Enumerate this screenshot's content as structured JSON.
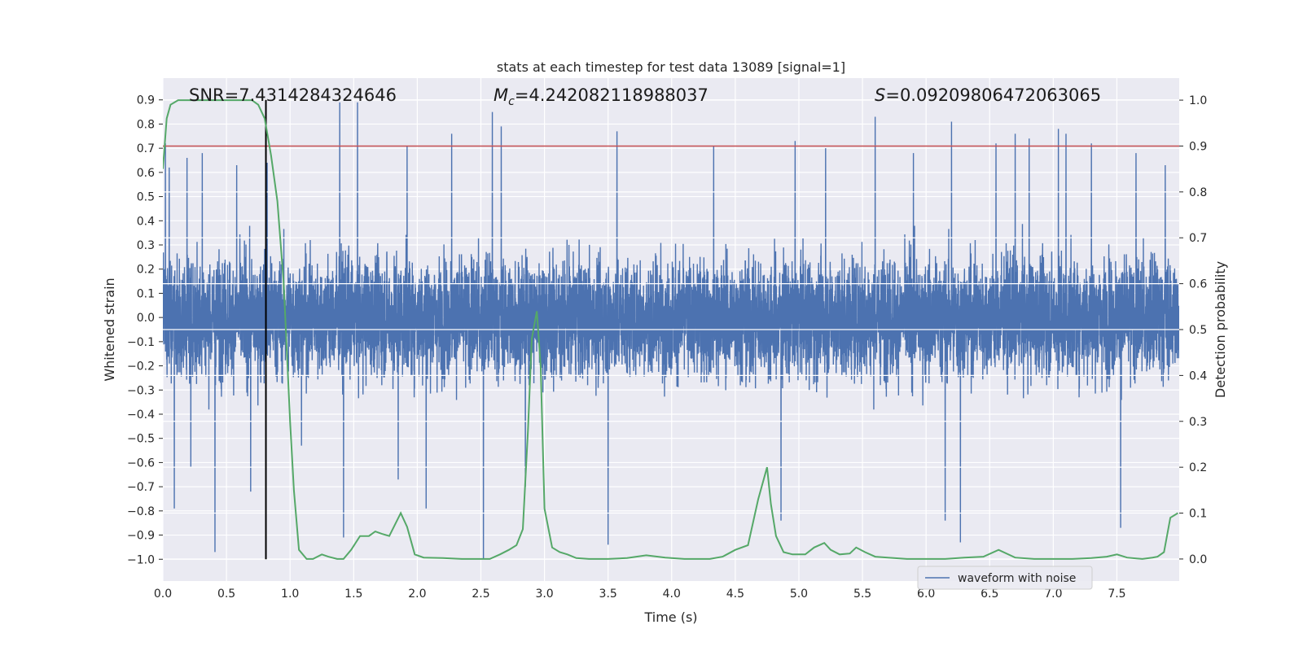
{
  "chart_data": {
    "type": "line",
    "title": "stats at each timestep for test data 13089 [signal=1]",
    "xlabel": "Time (s)",
    "ylabel": "Whitened strain",
    "y2label": "Detection probability",
    "xlim": [
      0,
      7.99
    ],
    "ylim": [
      -1.09,
      0.99
    ],
    "y2lim": [
      -0.048,
      1.048
    ],
    "xticks": [
      0.0,
      0.5,
      1.0,
      1.5,
      2.0,
      2.5,
      3.0,
      3.5,
      4.0,
      4.5,
      5.0,
      5.5,
      6.0,
      6.5,
      7.0,
      7.5
    ],
    "yticks": [
      0.9,
      0.8,
      0.7,
      0.6,
      0.5,
      0.4,
      0.3,
      0.2,
      0.1,
      0.0,
      -0.1,
      -0.2,
      -0.3,
      -0.4,
      -0.5,
      -0.6,
      -0.7,
      -0.8,
      -0.9,
      -1.0
    ],
    "y2ticks": [
      1.0,
      0.9,
      0.8,
      0.7,
      0.6,
      0.5,
      0.4,
      0.3,
      0.2,
      0.1,
      0.0
    ],
    "grid": true,
    "legend": {
      "position": "bottom-right",
      "entries": [
        "waveform with noise"
      ]
    },
    "annotations": {
      "snr": "SNR=7.4314284324646",
      "mc_symbol": "M",
      "mc_sub": "c",
      "mc_value": "=4.242082118988037",
      "s_symbol": "S",
      "s_value": "=0.09209806472063065"
    },
    "threshold": {
      "axis": "y2",
      "value": 0.9,
      "color": "#c44e52"
    },
    "marker_line": {
      "x": 0.81,
      "y_from": -1.0,
      "y_to": 0.9,
      "color": "#000000"
    },
    "series": [
      {
        "name": "waveform with noise",
        "axis": "y",
        "color": "#4c72b0",
        "sample_count": 8000,
        "extremes": [
          {
            "x": 0.02,
            "y": 0.72
          },
          {
            "x": 0.05,
            "y": 0.62
          },
          {
            "x": 0.09,
            "y": -0.79
          },
          {
            "x": 0.19,
            "y": 0.66
          },
          {
            "x": 0.22,
            "y": -0.62
          },
          {
            "x": 0.31,
            "y": 0.68
          },
          {
            "x": 0.41,
            "y": -0.97
          },
          {
            "x": 0.58,
            "y": 0.63
          },
          {
            "x": 0.69,
            "y": -0.72
          },
          {
            "x": 0.82,
            "y": 0.64
          },
          {
            "x": 1.09,
            "y": -0.53
          },
          {
            "x": 1.39,
            "y": 0.89
          },
          {
            "x": 1.42,
            "y": -0.91
          },
          {
            "x": 1.53,
            "y": 0.89
          },
          {
            "x": 1.85,
            "y": -0.67
          },
          {
            "x": 1.92,
            "y": 0.71
          },
          {
            "x": 2.07,
            "y": -0.79
          },
          {
            "x": 2.27,
            "y": 0.76
          },
          {
            "x": 2.52,
            "y": -1.0
          },
          {
            "x": 2.59,
            "y": 0.85
          },
          {
            "x": 2.66,
            "y": 0.79
          },
          {
            "x": 2.85,
            "y": -0.7
          },
          {
            "x": 3.5,
            "y": -0.94
          },
          {
            "x": 3.57,
            "y": 0.77
          },
          {
            "x": 4.33,
            "y": 0.71
          },
          {
            "x": 4.86,
            "y": -0.84
          },
          {
            "x": 4.97,
            "y": 0.73
          },
          {
            "x": 5.21,
            "y": 0.7
          },
          {
            "x": 5.6,
            "y": 0.83
          },
          {
            "x": 5.9,
            "y": 0.68
          },
          {
            "x": 6.15,
            "y": -0.84
          },
          {
            "x": 6.2,
            "y": 0.81
          },
          {
            "x": 6.27,
            "y": -0.93
          },
          {
            "x": 6.55,
            "y": 0.72
          },
          {
            "x": 6.7,
            "y": 0.76
          },
          {
            "x": 6.81,
            "y": 0.74
          },
          {
            "x": 7.04,
            "y": 0.78
          },
          {
            "x": 7.1,
            "y": 0.76
          },
          {
            "x": 7.3,
            "y": 0.72
          },
          {
            "x": 7.53,
            "y": -0.87
          },
          {
            "x": 7.65,
            "y": 0.68
          },
          {
            "x": 7.88,
            "y": 0.63
          }
        ]
      },
      {
        "name": "detection probability",
        "axis": "y2",
        "color": "#55a868",
        "points": [
          [
            0.0,
            0.85
          ],
          [
            0.03,
            0.96
          ],
          [
            0.06,
            0.99
          ],
          [
            0.12,
            1.0
          ],
          [
            0.2,
            1.0
          ],
          [
            0.4,
            1.0
          ],
          [
            0.6,
            1.0
          ],
          [
            0.7,
            1.0
          ],
          [
            0.75,
            0.99
          ],
          [
            0.8,
            0.96
          ],
          [
            0.85,
            0.88
          ],
          [
            0.9,
            0.78
          ],
          [
            0.95,
            0.6
          ],
          [
            1.0,
            0.3
          ],
          [
            1.03,
            0.15
          ],
          [
            1.07,
            0.02
          ],
          [
            1.13,
            0.0
          ],
          [
            1.18,
            0.0
          ],
          [
            1.25,
            0.01
          ],
          [
            1.3,
            0.005
          ],
          [
            1.37,
            0.0
          ],
          [
            1.42,
            0.0
          ],
          [
            1.48,
            0.02
          ],
          [
            1.55,
            0.05
          ],
          [
            1.62,
            0.05
          ],
          [
            1.67,
            0.06
          ],
          [
            1.72,
            0.055
          ],
          [
            1.78,
            0.05
          ],
          [
            1.87,
            0.1
          ],
          [
            1.92,
            0.07
          ],
          [
            1.98,
            0.01
          ],
          [
            2.05,
            0.003
          ],
          [
            2.2,
            0.002
          ],
          [
            2.35,
            0.0
          ],
          [
            2.5,
            0.0
          ],
          [
            2.57,
            0.0
          ],
          [
            2.65,
            0.01
          ],
          [
            2.72,
            0.02
          ],
          [
            2.78,
            0.03
          ],
          [
            2.83,
            0.065
          ],
          [
            2.87,
            0.28
          ],
          [
            2.9,
            0.48
          ],
          [
            2.94,
            0.54
          ],
          [
            2.97,
            0.42
          ],
          [
            3.0,
            0.11
          ],
          [
            3.06,
            0.025
          ],
          [
            3.12,
            0.015
          ],
          [
            3.18,
            0.01
          ],
          [
            3.25,
            0.002
          ],
          [
            3.35,
            0.0
          ],
          [
            3.5,
            0.0
          ],
          [
            3.65,
            0.002
          ],
          [
            3.8,
            0.008
          ],
          [
            3.95,
            0.003
          ],
          [
            4.1,
            0.0
          ],
          [
            4.3,
            0.0
          ],
          [
            4.4,
            0.005
          ],
          [
            4.5,
            0.02
          ],
          [
            4.6,
            0.03
          ],
          [
            4.68,
            0.13
          ],
          [
            4.75,
            0.2
          ],
          [
            4.78,
            0.12
          ],
          [
            4.82,
            0.05
          ],
          [
            4.88,
            0.015
          ],
          [
            4.95,
            0.01
          ],
          [
            5.05,
            0.01
          ],
          [
            5.12,
            0.025
          ],
          [
            5.2,
            0.035
          ],
          [
            5.25,
            0.02
          ],
          [
            5.32,
            0.01
          ],
          [
            5.4,
            0.012
          ],
          [
            5.45,
            0.025
          ],
          [
            5.52,
            0.015
          ],
          [
            5.6,
            0.005
          ],
          [
            5.7,
            0.003
          ],
          [
            5.85,
            0.0
          ],
          [
            6.0,
            0.0
          ],
          [
            6.15,
            0.0
          ],
          [
            6.3,
            0.003
          ],
          [
            6.45,
            0.005
          ],
          [
            6.57,
            0.02
          ],
          [
            6.7,
            0.003
          ],
          [
            6.85,
            0.0
          ],
          [
            7.0,
            0.0
          ],
          [
            7.15,
            0.0
          ],
          [
            7.3,
            0.002
          ],
          [
            7.42,
            0.005
          ],
          [
            7.5,
            0.01
          ],
          [
            7.58,
            0.003
          ],
          [
            7.7,
            0.0
          ],
          [
            7.78,
            0.003
          ],
          [
            7.82,
            0.005
          ],
          [
            7.87,
            0.015
          ],
          [
            7.92,
            0.09
          ],
          [
            7.98,
            0.1
          ]
        ]
      }
    ]
  }
}
